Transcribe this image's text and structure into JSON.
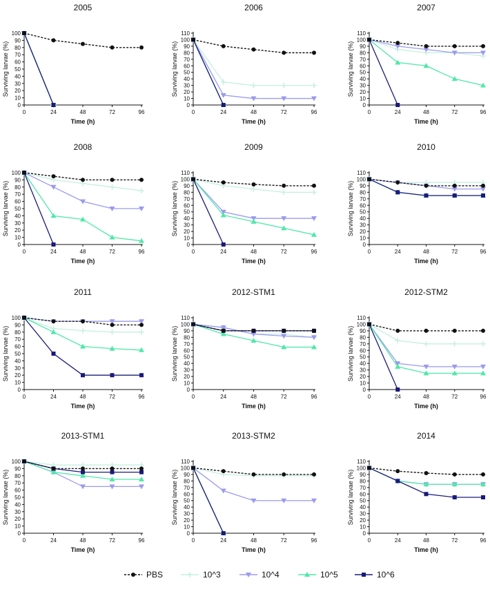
{
  "figure": {
    "xlabel": "Time (h)",
    "ylabel": "Surviving larvae (%)",
    "xticks": [
      0,
      24,
      48,
      72,
      96
    ],
    "xlim": [
      0,
      96
    ]
  },
  "series_styles": [
    {
      "name": "PBS",
      "color": "#111111",
      "marker": "circle",
      "dash": true
    },
    {
      "name": "10^3",
      "color": "#c6efe0",
      "marker": "plus",
      "dash": false
    },
    {
      "name": "10^4",
      "color": "#9a9af0",
      "marker": "tri-down",
      "dash": false
    },
    {
      "name": "10^5",
      "color": "#4fe8a8",
      "marker": "tri-up",
      "dash": false
    },
    {
      "name": "10^6",
      "color": "#1a1a7a",
      "marker": "square",
      "dash": false
    }
  ],
  "legend": {
    "labels": [
      "PBS",
      "10^3",
      "10^4",
      "10^5",
      "10^6"
    ],
    "position": "bottom"
  },
  "chart_data": [
    {
      "type": "line",
      "title": "2005",
      "ylim": [
        0,
        100
      ],
      "yticks": [
        0,
        10,
        20,
        30,
        40,
        50,
        60,
        70,
        80,
        90,
        100
      ],
      "series": [
        {
          "name": "PBS",
          "x": [
            0,
            24,
            48,
            72,
            96
          ],
          "values": [
            100,
            90,
            85,
            80,
            80
          ]
        },
        {
          "name": "10^3",
          "x": [
            0,
            24
          ],
          "values": [
            100,
            0
          ]
        },
        {
          "name": "10^4",
          "x": [
            0,
            24
          ],
          "values": [
            100,
            0
          ]
        },
        {
          "name": "10^5",
          "x": [
            0,
            24
          ],
          "values": [
            100,
            0
          ]
        },
        {
          "name": "10^6",
          "x": [
            0,
            24
          ],
          "values": [
            100,
            0
          ]
        }
      ]
    },
    {
      "type": "line",
      "title": "2006",
      "ylim": [
        0,
        110
      ],
      "yticks": [
        0,
        10,
        20,
        30,
        40,
        50,
        60,
        70,
        80,
        90,
        100,
        110
      ],
      "series": [
        {
          "name": "PBS",
          "x": [
            0,
            24,
            48,
            72,
            96
          ],
          "values": [
            100,
            90,
            85,
            80,
            80
          ]
        },
        {
          "name": "10^3",
          "x": [
            0,
            24,
            48,
            72,
            96
          ],
          "values": [
            100,
            35,
            30,
            30,
            30
          ]
        },
        {
          "name": "10^4",
          "x": [
            0,
            24,
            48,
            72,
            96
          ],
          "values": [
            100,
            15,
            10,
            10,
            10
          ]
        },
        {
          "name": "10^5",
          "x": [
            0,
            24
          ],
          "values": [
            100,
            0
          ]
        },
        {
          "name": "10^6",
          "x": [
            0,
            24
          ],
          "values": [
            100,
            0
          ]
        }
      ]
    },
    {
      "type": "line",
      "title": "2007",
      "ylim": [
        0,
        110
      ],
      "yticks": [
        0,
        10,
        20,
        30,
        40,
        50,
        60,
        70,
        80,
        90,
        100,
        110
      ],
      "series": [
        {
          "name": "PBS",
          "x": [
            0,
            24,
            48,
            72,
            96
          ],
          "values": [
            100,
            95,
            90,
            90,
            90
          ]
        },
        {
          "name": "10^3",
          "x": [
            0,
            24,
            48,
            72,
            96
          ],
          "values": [
            100,
            85,
            80,
            80,
            75
          ]
        },
        {
          "name": "10^4",
          "x": [
            0,
            24,
            48,
            72,
            96
          ],
          "values": [
            100,
            90,
            85,
            80,
            80
          ]
        },
        {
          "name": "10^5",
          "x": [
            0,
            24,
            48,
            72,
            96
          ],
          "values": [
            100,
            65,
            60,
            40,
            30
          ]
        },
        {
          "name": "10^6",
          "x": [
            0,
            24
          ],
          "values": [
            100,
            0
          ]
        }
      ]
    },
    {
      "type": "line",
      "title": "2008",
      "ylim": [
        0,
        100
      ],
      "yticks": [
        0,
        10,
        20,
        30,
        40,
        50,
        60,
        70,
        80,
        90,
        100
      ],
      "series": [
        {
          "name": "PBS",
          "x": [
            0,
            24,
            48,
            72,
            96
          ],
          "values": [
            100,
            95,
            90,
            90,
            90
          ]
        },
        {
          "name": "10^3",
          "x": [
            0,
            24,
            48,
            72,
            96
          ],
          "values": [
            100,
            90,
            85,
            80,
            75
          ]
        },
        {
          "name": "10^4",
          "x": [
            0,
            24,
            48,
            72,
            96
          ],
          "values": [
            100,
            80,
            60,
            50,
            50
          ]
        },
        {
          "name": "10^5",
          "x": [
            0,
            24,
            48,
            72,
            96
          ],
          "values": [
            100,
            40,
            35,
            10,
            5
          ]
        },
        {
          "name": "10^6",
          "x": [
            0,
            24
          ],
          "values": [
            100,
            0
          ]
        }
      ]
    },
    {
      "type": "line",
      "title": "2009",
      "ylim": [
        0,
        110
      ],
      "yticks": [
        0,
        10,
        20,
        30,
        40,
        50,
        60,
        70,
        80,
        90,
        100,
        110
      ],
      "series": [
        {
          "name": "PBS",
          "x": [
            0,
            24,
            48,
            72,
            96
          ],
          "values": [
            100,
            95,
            92,
            90,
            90
          ]
        },
        {
          "name": "10^3",
          "x": [
            0,
            24,
            48,
            72,
            96
          ],
          "values": [
            100,
            90,
            85,
            80,
            80
          ]
        },
        {
          "name": "10^4",
          "x": [
            0,
            24,
            48,
            72,
            96
          ],
          "values": [
            100,
            50,
            40,
            40,
            40
          ]
        },
        {
          "name": "10^5",
          "x": [
            0,
            24,
            48,
            72,
            96
          ],
          "values": [
            100,
            45,
            35,
            25,
            15
          ]
        },
        {
          "name": "10^6",
          "x": [
            0,
            24
          ],
          "values": [
            100,
            0
          ]
        }
      ]
    },
    {
      "type": "line",
      "title": "2010",
      "ylim": [
        0,
        110
      ],
      "yticks": [
        0,
        10,
        20,
        30,
        40,
        50,
        60,
        70,
        80,
        90,
        100,
        110
      ],
      "series": [
        {
          "name": "PBS",
          "x": [
            0,
            24,
            48,
            72,
            96
          ],
          "values": [
            100,
            95,
            90,
            90,
            90
          ]
        },
        {
          "name": "10^3",
          "x": [
            0,
            24,
            48,
            72,
            96
          ],
          "values": [
            100,
            95,
            95,
            95,
            95
          ]
        },
        {
          "name": "10^4",
          "x": [
            0,
            24,
            48,
            72,
            96
          ],
          "values": [
            100,
            95,
            90,
            85,
            85
          ]
        },
        {
          "name": "10^5",
          "x": [
            0,
            24,
            48,
            72,
            96
          ],
          "values": [
            100,
            80,
            75,
            75,
            75
          ]
        },
        {
          "name": "10^6",
          "x": [
            0,
            24,
            48,
            72,
            96
          ],
          "values": [
            100,
            80,
            75,
            75,
            75
          ]
        }
      ]
    },
    {
      "type": "line",
      "title": "2011",
      "ylim": [
        0,
        100
      ],
      "yticks": [
        0,
        10,
        20,
        30,
        40,
        50,
        60,
        70,
        80,
        90,
        100
      ],
      "series": [
        {
          "name": "PBS",
          "x": [
            0,
            24,
            48,
            72,
            96
          ],
          "values": [
            100,
            95,
            95,
            90,
            90
          ]
        },
        {
          "name": "10^3",
          "x": [
            0,
            24,
            48,
            72,
            96
          ],
          "values": [
            100,
            85,
            82,
            80,
            80
          ]
        },
        {
          "name": "10^4",
          "x": [
            0,
            24,
            48,
            72,
            96
          ],
          "values": [
            100,
            95,
            95,
            95,
            95
          ]
        },
        {
          "name": "10^5",
          "x": [
            0,
            24,
            48,
            72,
            96
          ],
          "values": [
            100,
            80,
            60,
            57,
            55
          ]
        },
        {
          "name": "10^6",
          "x": [
            0,
            24,
            48,
            72,
            96
          ],
          "values": [
            100,
            50,
            20,
            20,
            20
          ]
        }
      ]
    },
    {
      "type": "line",
      "title": "2012-STM1",
      "ylim": [
        0,
        110
      ],
      "yticks": [
        0,
        10,
        20,
        30,
        40,
        50,
        60,
        70,
        80,
        90,
        100,
        110
      ],
      "series": [
        {
          "name": "PBS",
          "x": [
            0,
            24,
            48,
            72,
            96
          ],
          "values": [
            100,
            90,
            90,
            90,
            90
          ]
        },
        {
          "name": "10^3",
          "x": [
            0,
            24,
            48,
            72,
            96
          ],
          "values": [
            100,
            95,
            85,
            85,
            80
          ]
        },
        {
          "name": "10^4",
          "x": [
            0,
            24,
            48,
            72,
            96
          ],
          "values": [
            100,
            95,
            85,
            82,
            80
          ]
        },
        {
          "name": "10^5",
          "x": [
            0,
            24,
            48,
            72,
            96
          ],
          "values": [
            100,
            85,
            75,
            65,
            65
          ]
        },
        {
          "name": "10^6",
          "x": [
            0,
            24,
            48,
            72,
            96
          ],
          "values": [
            100,
            90,
            90,
            90,
            90
          ]
        }
      ]
    },
    {
      "type": "line",
      "title": "2012-STM2",
      "ylim": [
        0,
        110
      ],
      "yticks": [
        0,
        10,
        20,
        30,
        40,
        50,
        60,
        70,
        80,
        90,
        100,
        110
      ],
      "series": [
        {
          "name": "PBS",
          "x": [
            0,
            24,
            48,
            72,
            96
          ],
          "values": [
            100,
            90,
            90,
            90,
            90
          ]
        },
        {
          "name": "10^3",
          "x": [
            0,
            24,
            48,
            72,
            96
          ],
          "values": [
            100,
            75,
            70,
            70,
            70
          ]
        },
        {
          "name": "10^4",
          "x": [
            0,
            24,
            48,
            72,
            96
          ],
          "values": [
            100,
            40,
            35,
            35,
            35
          ]
        },
        {
          "name": "10^5",
          "x": [
            0,
            24,
            48,
            72,
            96
          ],
          "values": [
            100,
            35,
            25,
            25,
            25
          ]
        },
        {
          "name": "10^6",
          "x": [
            0,
            24
          ],
          "values": [
            100,
            0
          ]
        }
      ]
    },
    {
      "type": "line",
      "title": "2013-STM1",
      "ylim": [
        0,
        100
      ],
      "yticks": [
        0,
        10,
        20,
        30,
        40,
        50,
        60,
        70,
        80,
        90,
        100
      ],
      "series": [
        {
          "name": "PBS",
          "x": [
            0,
            24,
            48,
            72,
            96
          ],
          "values": [
            100,
            90,
            90,
            90,
            90
          ]
        },
        {
          "name": "10^3",
          "x": [
            0,
            24,
            48,
            72,
            96
          ],
          "values": [
            100,
            95,
            95,
            95,
            95
          ]
        },
        {
          "name": "10^4",
          "x": [
            0,
            24,
            48,
            72,
            96
          ],
          "values": [
            100,
            85,
            65,
            65,
            65
          ]
        },
        {
          "name": "10^5",
          "x": [
            0,
            24,
            48,
            72,
            96
          ],
          "values": [
            100,
            85,
            80,
            75,
            75
          ]
        },
        {
          "name": "10^6",
          "x": [
            0,
            24,
            48,
            72,
            96
          ],
          "values": [
            100,
            90,
            85,
            85,
            85
          ]
        }
      ]
    },
    {
      "type": "line",
      "title": "2013-STM2",
      "ylim": [
        0,
        110
      ],
      "yticks": [
        0,
        10,
        20,
        30,
        40,
        50,
        60,
        70,
        80,
        90,
        100,
        110
      ],
      "series": [
        {
          "name": "PBS",
          "x": [
            0,
            24,
            48,
            72,
            96
          ],
          "values": [
            100,
            95,
            90,
            90,
            90
          ]
        },
        {
          "name": "10^3",
          "x": [
            0,
            24,
            48,
            72,
            96
          ],
          "values": [
            100,
            90,
            88,
            88,
            88
          ]
        },
        {
          "name": "10^4",
          "x": [
            0,
            24,
            48,
            72,
            96
          ],
          "values": [
            100,
            65,
            50,
            50,
            50
          ]
        },
        {
          "name": "10^5",
          "x": [
            0,
            24
          ],
          "values": [
            100,
            0
          ]
        },
        {
          "name": "10^6",
          "x": [
            0,
            24
          ],
          "values": [
            100,
            0
          ]
        }
      ]
    },
    {
      "type": "line",
      "title": "2014",
      "ylim": [
        0,
        110
      ],
      "yticks": [
        0,
        10,
        20,
        30,
        40,
        50,
        60,
        70,
        80,
        90,
        100,
        110
      ],
      "series": [
        {
          "name": "PBS",
          "x": [
            0,
            24,
            48,
            72,
            96
          ],
          "values": [
            100,
            95,
            92,
            90,
            90
          ]
        },
        {
          "name": "10^3",
          "x": [
            0,
            24,
            48,
            72,
            96
          ],
          "values": [
            100,
            80,
            75,
            75,
            75
          ]
        },
        {
          "name": "10^4",
          "x": [
            0,
            24,
            48,
            72,
            96
          ],
          "values": [
            100,
            80,
            75,
            75,
            75
          ]
        },
        {
          "name": "10^5",
          "x": [
            0,
            24,
            48,
            72,
            96
          ],
          "values": [
            100,
            80,
            75,
            75,
            75
          ]
        },
        {
          "name": "10^6",
          "x": [
            0,
            24,
            48,
            72,
            96
          ],
          "values": [
            100,
            80,
            60,
            55,
            55
          ]
        }
      ]
    }
  ]
}
